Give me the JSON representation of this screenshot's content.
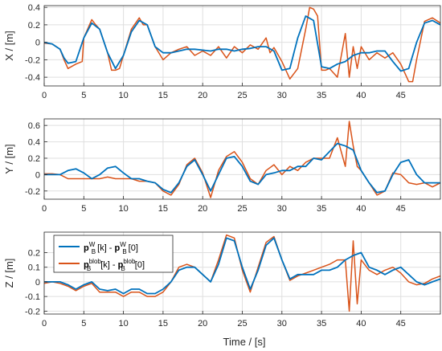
{
  "colors": {
    "reference": "#0072BD",
    "blob": "#D95319",
    "grid": "#DFDFDF",
    "axis": "#262626"
  },
  "xlabel": "Time / [s]",
  "x_ticks": [
    "0",
    "5",
    "10",
    "15",
    "20",
    "25",
    "30",
    "35",
    "40",
    "45"
  ],
  "legend": {
    "location": "top-left of bottom panel",
    "entries": [
      {
        "series": "reference",
        "line1": "p",
        "line1_sub": "B",
        "line1_sup": "W",
        "line1_rest": "[k] - ",
        "line2": "p",
        "line2_sub": "B",
        "line2_sup": "W",
        "line2_rest": "[0]"
      },
      {
        "series": "blob",
        "line1": "p",
        "line1_sub": "B",
        "line1_sup": "blob",
        "line1_rest": "[k] - ",
        "line2": "p",
        "line2_sub": "B",
        "line2_sup": "blob",
        "line2_rest": "[0]"
      }
    ]
  },
  "chart_data": [
    {
      "type": "line",
      "ylabel": "X / [m]",
      "xlim": [
        0,
        50
      ],
      "ylim": [
        -0.5,
        0.42
      ],
      "y_ticks": [
        0.4,
        0.2,
        0,
        -0.2,
        -0.4
      ],
      "y_tick_labels": [
        "0.4",
        "0.2",
        "0",
        "-0.2",
        "-0.4"
      ],
      "grid": true,
      "series": [
        {
          "key": "reference",
          "x": [
            0,
            1,
            2,
            2.5,
            3,
            4,
            5,
            6,
            7,
            8,
            9,
            10,
            11,
            12,
            13,
            14,
            15,
            16,
            17,
            18,
            19,
            20,
            21,
            22,
            23,
            24,
            25,
            26,
            27,
            28,
            29,
            30,
            31,
            32,
            33,
            34,
            35,
            36,
            37,
            38,
            39,
            40,
            41,
            42,
            43,
            44,
            45,
            46,
            47,
            48,
            49,
            50
          ],
          "y": [
            0.0,
            -0.02,
            -0.08,
            -0.18,
            -0.24,
            -0.22,
            0.05,
            0.22,
            0.15,
            -0.12,
            -0.3,
            -0.15,
            0.12,
            0.25,
            0.2,
            -0.05,
            -0.12,
            -0.12,
            -0.1,
            -0.08,
            -0.08,
            -0.09,
            -0.1,
            -0.08,
            -0.08,
            -0.1,
            -0.08,
            -0.07,
            -0.05,
            -0.05,
            -0.1,
            -0.32,
            -0.3,
            0.05,
            0.3,
            0.25,
            -0.28,
            -0.3,
            -0.25,
            -0.22,
            -0.15,
            -0.12,
            -0.12,
            -0.1,
            -0.1,
            -0.22,
            -0.33,
            -0.3,
            0.0,
            0.22,
            0.25,
            0.2
          ]
        },
        {
          "key": "blob",
          "x": [
            0,
            1,
            2,
            2.5,
            3,
            4,
            4.8,
            5,
            6,
            6.5,
            7,
            8,
            8.5,
            9,
            9.5,
            10,
            11,
            12,
            12.5,
            13,
            14,
            15,
            16,
            17,
            18,
            19,
            20,
            21,
            22,
            23,
            24,
            25,
            26,
            27,
            28,
            28.5,
            29,
            30,
            31,
            32,
            33,
            33.5,
            34,
            34.5,
            35,
            35.5,
            36,
            37,
            38,
            38.5,
            39,
            39.5,
            40,
            41,
            42,
            43,
            44,
            45,
            46,
            46.5,
            47,
            48,
            49,
            50
          ],
          "y": [
            -0.01,
            -0.02,
            -0.08,
            -0.2,
            -0.3,
            -0.25,
            -0.22,
            0.05,
            0.26,
            0.2,
            0.15,
            -0.12,
            -0.32,
            -0.32,
            -0.3,
            -0.15,
            0.15,
            0.28,
            0.2,
            0.2,
            -0.05,
            -0.2,
            -0.12,
            -0.08,
            -0.05,
            -0.15,
            -0.1,
            -0.15,
            -0.05,
            -0.18,
            -0.05,
            -0.12,
            -0.03,
            -0.08,
            0.05,
            -0.12,
            -0.06,
            -0.22,
            -0.42,
            -0.3,
            0.15,
            0.4,
            0.38,
            0.3,
            -0.32,
            -0.32,
            -0.3,
            -0.4,
            0.1,
            -0.4,
            -0.05,
            -0.3,
            -0.05,
            -0.2,
            -0.12,
            -0.18,
            -0.12,
            -0.25,
            -0.45,
            -0.45,
            -0.2,
            0.24,
            0.28,
            0.22
          ]
        }
      ]
    },
    {
      "type": "line",
      "ylabel": "Y / [m]",
      "xlim": [
        0,
        50
      ],
      "ylim": [
        -0.3,
        0.68
      ],
      "y_ticks": [
        0.6,
        0.4,
        0.2,
        0,
        -0.2
      ],
      "y_tick_labels": [
        "0.6",
        "0.4",
        "0.2",
        "0",
        "-0.2"
      ],
      "grid": true,
      "series": [
        {
          "key": "reference",
          "x": [
            0,
            1,
            2,
            3,
            4,
            5,
            6,
            7,
            8,
            9,
            10,
            11,
            12,
            13,
            14,
            15,
            16,
            17,
            18,
            19,
            20,
            21,
            22,
            23,
            24,
            25,
            26,
            27,
            28,
            29,
            30,
            31,
            32,
            33,
            34,
            35,
            36,
            37,
            38,
            39,
            40,
            41,
            42,
            43,
            44,
            45,
            46,
            47,
            48,
            49,
            50
          ],
          "y": [
            0.0,
            0.0,
            0.0,
            0.05,
            0.07,
            0.02,
            -0.05,
            0.0,
            0.08,
            0.1,
            0.02,
            -0.05,
            -0.05,
            -0.08,
            -0.1,
            -0.18,
            -0.22,
            -0.1,
            0.1,
            0.18,
            0.0,
            -0.2,
            0.0,
            0.2,
            0.22,
            0.1,
            -0.08,
            -0.12,
            0.0,
            0.02,
            0.05,
            0.05,
            0.1,
            0.1,
            0.2,
            0.18,
            0.28,
            0.38,
            0.35,
            0.3,
            0.05,
            -0.1,
            -0.22,
            -0.2,
            0.0,
            0.15,
            0.18,
            0.0,
            -0.1,
            -0.1,
            -0.1
          ]
        },
        {
          "key": "blob",
          "x": [
            0,
            1,
            2,
            3,
            4,
            5,
            6,
            7,
            8,
            9,
            10,
            11,
            12,
            13,
            14,
            15,
            16,
            17,
            18,
            19,
            20,
            21,
            22,
            23,
            24,
            25,
            26,
            27,
            28,
            29,
            30,
            31,
            32,
            33,
            34,
            35,
            36,
            37,
            38,
            38.5,
            39,
            39.5,
            40,
            41,
            42,
            43,
            44,
            45,
            46,
            47,
            48,
            49,
            50
          ],
          "y": [
            0.01,
            0.01,
            0.0,
            -0.05,
            -0.05,
            -0.05,
            -0.05,
            -0.05,
            -0.03,
            -0.05,
            -0.05,
            -0.05,
            -0.08,
            -0.08,
            -0.1,
            -0.2,
            -0.25,
            -0.12,
            0.12,
            0.2,
            0.02,
            -0.28,
            0.05,
            0.22,
            0.28,
            0.15,
            -0.05,
            -0.12,
            0.05,
            0.12,
            0.0,
            0.1,
            0.05,
            0.15,
            0.2,
            0.2,
            0.2,
            0.45,
            0.1,
            0.65,
            0.35,
            0.1,
            0.05,
            -0.1,
            -0.25,
            -0.2,
            0.02,
            0.0,
            -0.1,
            -0.12,
            -0.1,
            -0.15,
            -0.1
          ]
        }
      ]
    },
    {
      "type": "line",
      "ylabel": "Z / [m]",
      "xlim": [
        0,
        50
      ],
      "ylim": [
        -0.22,
        0.34
      ],
      "y_ticks": [
        0.2,
        0.1,
        0,
        -0.1,
        -0.2
      ],
      "y_tick_labels": [
        "0.2",
        "0.1",
        "0",
        "-0.1",
        "-0.2"
      ],
      "grid": true,
      "series": [
        {
          "key": "reference",
          "x": [
            0,
            1,
            2,
            3,
            4,
            5,
            6,
            7,
            8,
            9,
            10,
            11,
            12,
            13,
            14,
            15,
            16,
            17,
            18,
            19,
            20,
            21,
            22,
            23,
            24,
            25,
            26,
            27,
            28,
            29,
            30,
            31,
            32,
            33,
            34,
            35,
            36,
            37,
            38,
            39,
            40,
            41,
            42,
            43,
            44,
            45,
            46,
            47,
            48,
            49,
            50
          ],
          "y": [
            0.0,
            0.0,
            0.0,
            -0.02,
            -0.05,
            -0.02,
            0.0,
            -0.05,
            -0.06,
            -0.05,
            -0.08,
            -0.05,
            -0.05,
            -0.08,
            -0.08,
            -0.05,
            0.0,
            0.08,
            0.1,
            0.1,
            0.05,
            0.0,
            0.12,
            0.3,
            0.28,
            0.1,
            -0.05,
            0.08,
            0.25,
            0.3,
            0.15,
            0.02,
            0.05,
            0.05,
            0.05,
            0.08,
            0.08,
            0.1,
            0.15,
            0.18,
            0.2,
            0.1,
            0.08,
            0.05,
            0.08,
            0.1,
            0.05,
            0.0,
            -0.02,
            0.0,
            0.02
          ]
        },
        {
          "key": "blob",
          "x": [
            0,
            1,
            2,
            3,
            4,
            5,
            6,
            7,
            8,
            9,
            10,
            11,
            12,
            13,
            14,
            15,
            16,
            17,
            18,
            19,
            20,
            21,
            22,
            23,
            24,
            25,
            26,
            27,
            28,
            29,
            30,
            31,
            32,
            33,
            34,
            35,
            36,
            37,
            38,
            38.5,
            39,
            39.5,
            40,
            41,
            42,
            43,
            44,
            45,
            46,
            47,
            48,
            49,
            50
          ],
          "y": [
            -0.01,
            0.0,
            -0.01,
            -0.03,
            -0.06,
            -0.03,
            -0.01,
            -0.07,
            -0.07,
            -0.07,
            -0.1,
            -0.07,
            -0.07,
            -0.1,
            -0.1,
            -0.07,
            0.0,
            0.1,
            0.12,
            0.1,
            0.05,
            0.0,
            0.15,
            0.32,
            0.3,
            0.08,
            -0.07,
            0.1,
            0.27,
            0.31,
            0.15,
            0.01,
            0.04,
            0.06,
            0.08,
            0.1,
            0.12,
            0.15,
            0.15,
            -0.2,
            0.28,
            -0.15,
            0.15,
            0.08,
            0.05,
            0.08,
            0.1,
            0.06,
            0.0,
            -0.02,
            -0.01,
            0.02,
            0.04
          ]
        }
      ]
    }
  ]
}
